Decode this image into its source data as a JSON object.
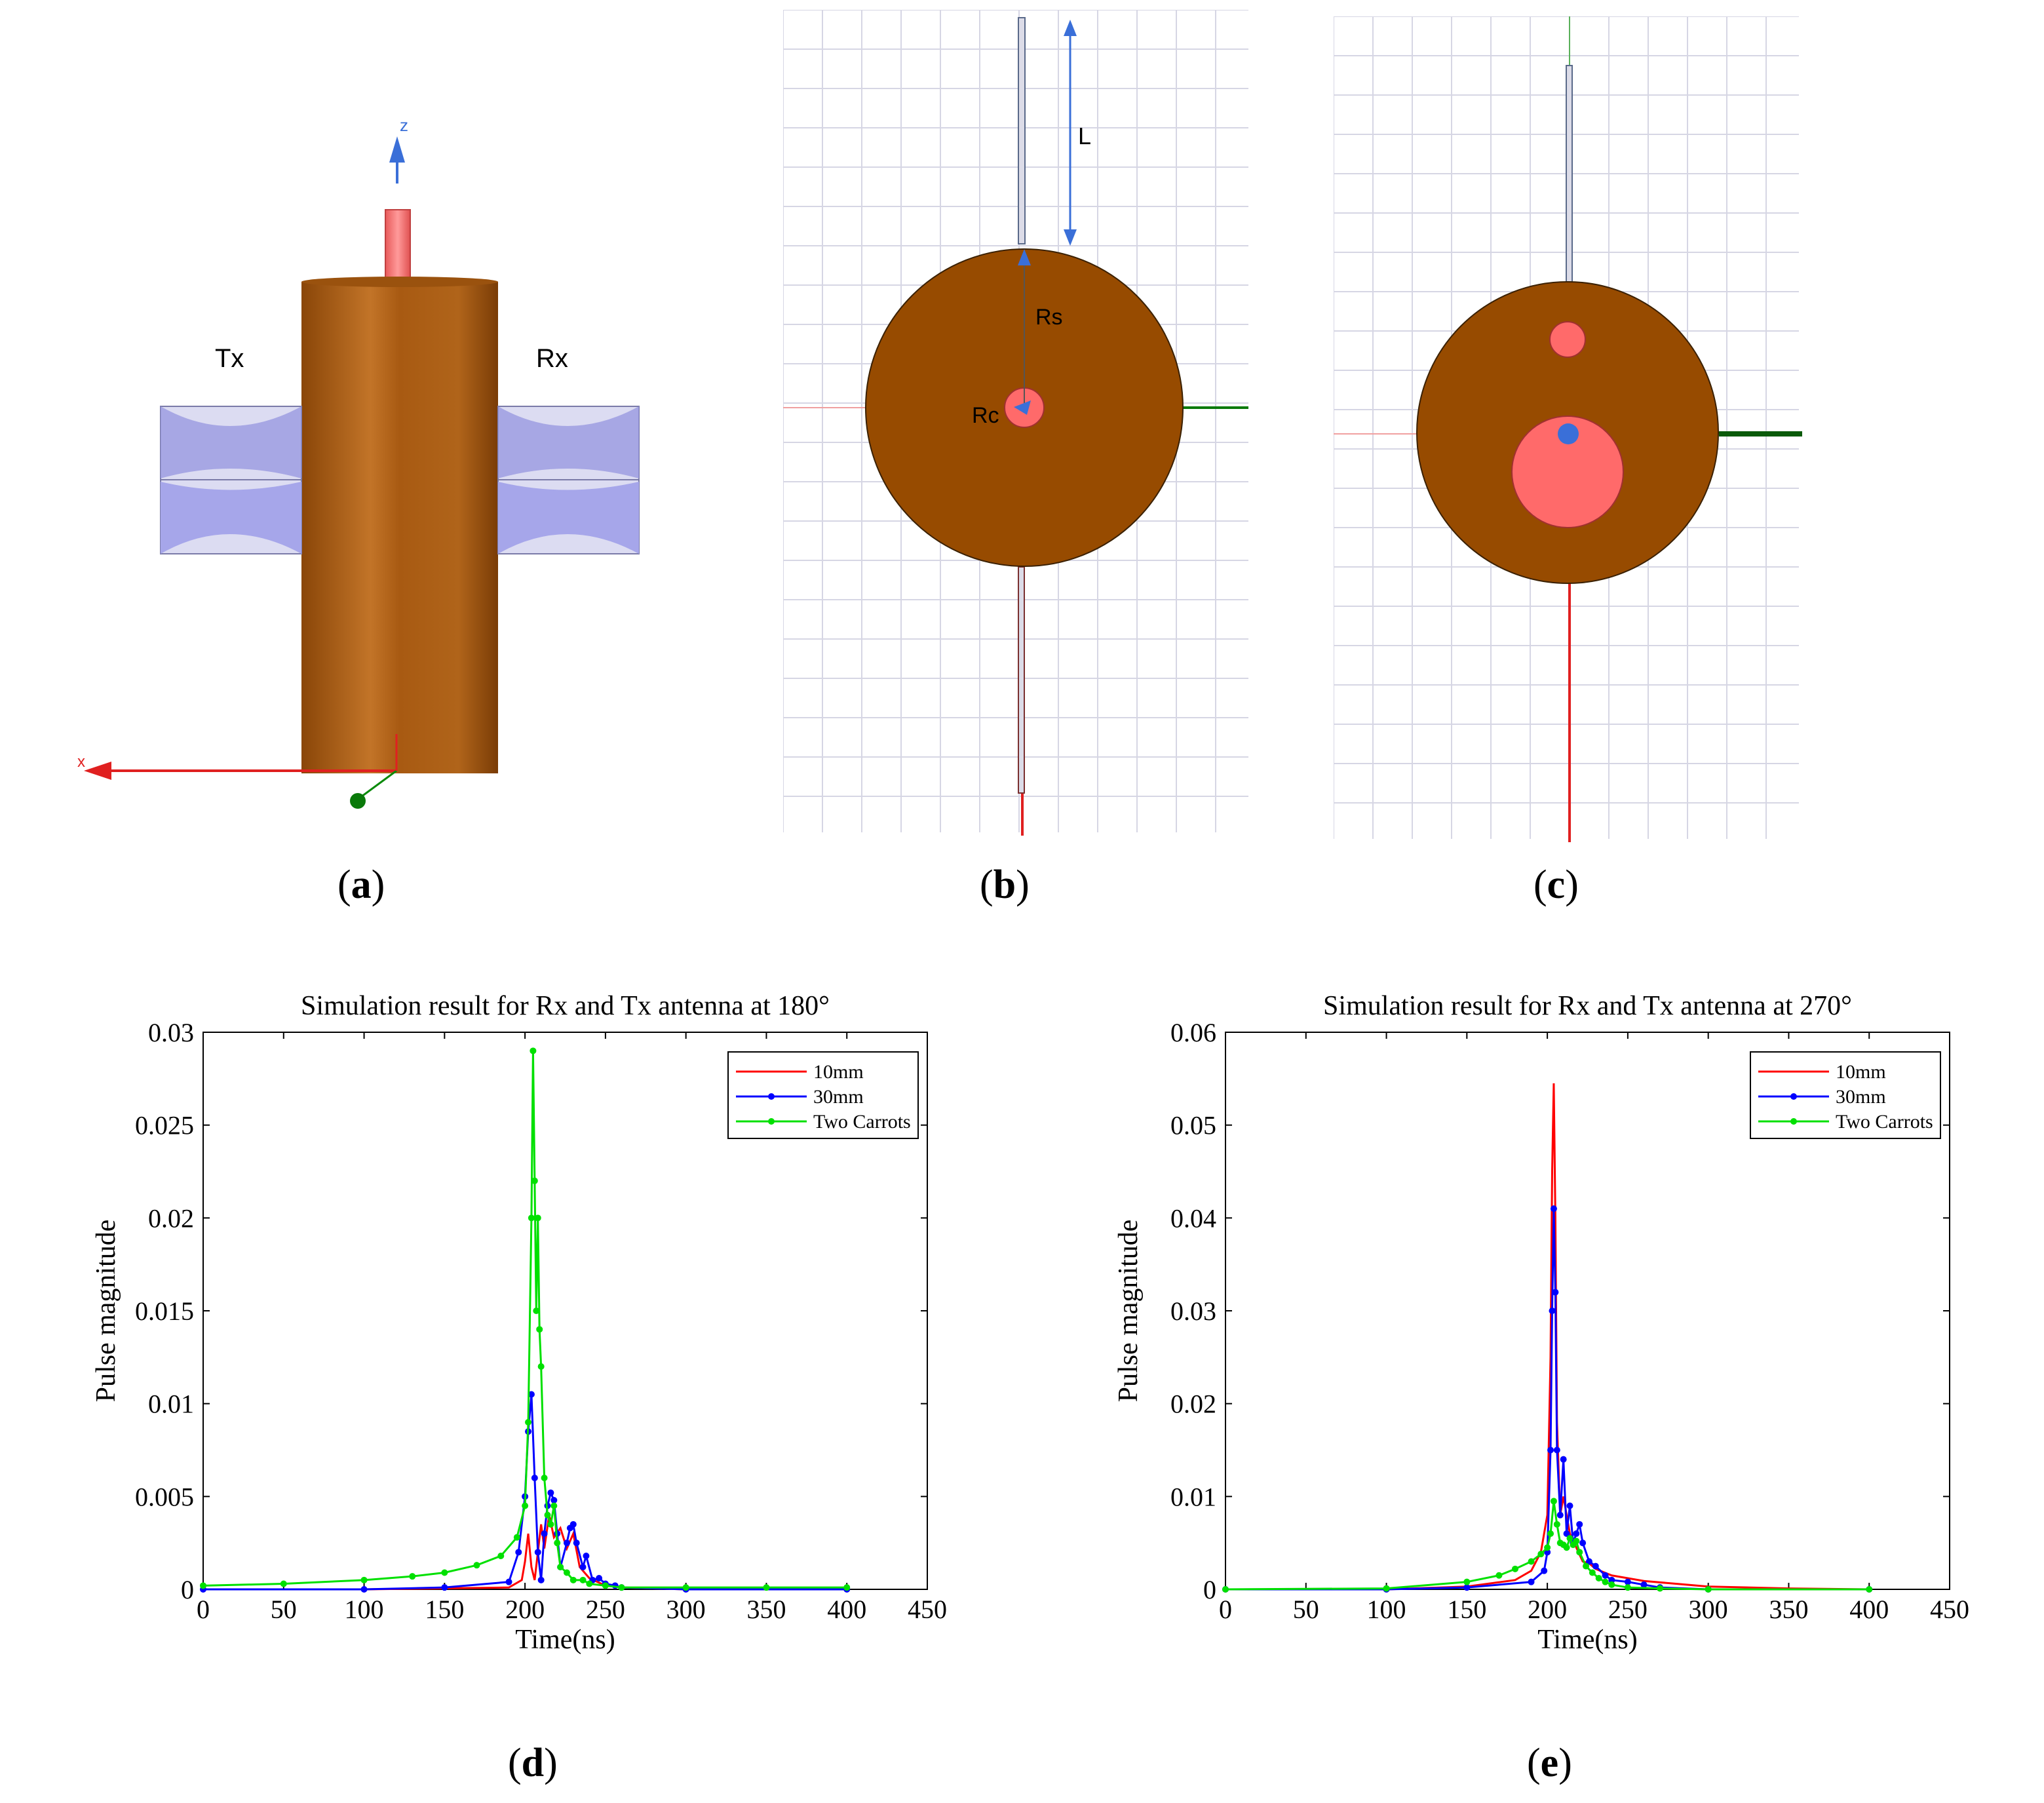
{
  "panel_a": {
    "tx_label": "Tx",
    "rx_label": "Rx",
    "z_axis": "z",
    "x_axis": "x",
    "caption": "a",
    "colors": {
      "cylinder": "#a65a12",
      "probe": "#f07070",
      "antenna": "#a6a6e6",
      "antenna_dark": "#7070b8"
    }
  },
  "panel_b": {
    "length_label": "L",
    "rs_label": "Rs",
    "rc_label": "Rc",
    "caption": "b",
    "colors": {
      "disk": "#974b00",
      "core": "#ff6a6a",
      "grid": "#d4d4e4"
    }
  },
  "panel_c": {
    "caption": "c"
  },
  "chart_data": [
    {
      "type": "line",
      "caption": "d",
      "title": "Simulation result for Rx and Tx antenna at 180°",
      "xlabel": "Time(ns)",
      "ylabel": "Pulse magnitude",
      "xlim": [
        0,
        450
      ],
      "ylim": [
        0,
        0.03
      ],
      "xticks": [
        0,
        50,
        100,
        150,
        200,
        250,
        300,
        350,
        400,
        450
      ],
      "xtick_labels": [
        "0",
        "50",
        "100",
        "150",
        "200",
        "250",
        "300",
        "350",
        "400",
        "450"
      ],
      "yticks": [
        0,
        0.005,
        0.01,
        0.015,
        0.02,
        0.025,
        0.03
      ],
      "ytick_labels": [
        "0",
        "0.005",
        "0.01",
        "0.015",
        "0.02",
        "0.025",
        "0.03"
      ],
      "legend_position": "top-right",
      "series": [
        {
          "name": "10mm",
          "color": "#ff0000",
          "marker": false,
          "x": [
            0,
            100,
            190,
            198,
            200,
            202,
            204,
            206,
            208,
            210,
            212,
            215,
            218,
            222,
            226,
            230,
            234,
            240,
            250,
            260,
            300,
            400
          ],
          "y": [
            0,
            0,
            0.0001,
            0.0005,
            0.0015,
            0.003,
            0.0012,
            0.0005,
            0.002,
            0.0035,
            0.0022,
            0.004,
            0.0028,
            0.0033,
            0.0022,
            0.003,
            0.0012,
            0.0006,
            0.0002,
            0.0001,
            0,
            0
          ]
        },
        {
          "name": "30mm",
          "color": "#0000ff",
          "marker": true,
          "x": [
            0,
            100,
            150,
            190,
            196,
            200,
            202,
            204,
            206,
            208,
            210,
            212,
            214,
            216,
            218,
            220,
            222,
            226,
            228,
            230,
            232,
            236,
            238,
            242,
            246,
            250,
            256,
            260,
            300,
            400
          ],
          "y": [
            0,
            0,
            0.0001,
            0.0004,
            0.002,
            0.005,
            0.0085,
            0.0105,
            0.006,
            0.002,
            0.0005,
            0.003,
            0.0045,
            0.0052,
            0.0048,
            0.003,
            0.0012,
            0.0025,
            0.0033,
            0.0035,
            0.0025,
            0.0012,
            0.0018,
            0.0005,
            0.0006,
            0.0003,
            0.0002,
            0.0001,
            0,
            0
          ]
        },
        {
          "name": "Two Carrots",
          "color": "#00e000",
          "marker": true,
          "x": [
            0,
            50,
            100,
            130,
            150,
            170,
            185,
            195,
            200,
            202,
            204,
            205,
            206,
            207,
            208,
            209,
            210,
            212,
            214,
            216,
            218,
            220,
            222,
            226,
            230,
            236,
            240,
            250,
            260,
            300,
            350,
            400
          ],
          "y": [
            0.0002,
            0.0003,
            0.0005,
            0.0007,
            0.0009,
            0.0013,
            0.0018,
            0.0028,
            0.0045,
            0.009,
            0.02,
            0.029,
            0.022,
            0.015,
            0.02,
            0.014,
            0.012,
            0.006,
            0.004,
            0.0035,
            0.0045,
            0.0025,
            0.0012,
            0.0009,
            0.0005,
            0.0005,
            0.0003,
            0.0002,
            0.0001,
            0.0001,
            0.0001,
            0.0001
          ]
        }
      ]
    },
    {
      "type": "line",
      "caption": "e",
      "title": "Simulation result for Rx and Tx antenna at 270°",
      "xlabel": "Time(ns)",
      "ylabel": "Pulse magnitude",
      "xlim": [
        0,
        450
      ],
      "ylim": [
        0,
        0.06
      ],
      "xticks": [
        0,
        50,
        100,
        150,
        200,
        250,
        300,
        350,
        400,
        450
      ],
      "xtick_labels": [
        "0",
        "50",
        "100",
        "150",
        "200",
        "250",
        "300",
        "350",
        "400",
        "450"
      ],
      "yticks": [
        0,
        0.01,
        0.02,
        0.03,
        0.04,
        0.05,
        0.06
      ],
      "ytick_labels": [
        "0",
        "0.01",
        "0.02",
        "0.03",
        "0.04",
        "0.05",
        "0.06"
      ],
      "legend_position": "top-right",
      "series": [
        {
          "name": "10mm",
          "color": "#ff0000",
          "marker": false,
          "x": [
            0,
            100,
            150,
            180,
            190,
            196,
            200,
            202,
            203,
            204,
            205,
            206,
            208,
            210,
            214,
            218,
            222,
            226,
            230,
            240,
            250,
            260,
            280,
            300,
            350,
            400
          ],
          "y": [
            0,
            0,
            0.0003,
            0.001,
            0.002,
            0.004,
            0.008,
            0.025,
            0.045,
            0.0545,
            0.04,
            0.018,
            0.008,
            0.01,
            0.006,
            0.0045,
            0.003,
            0.0028,
            0.0022,
            0.0015,
            0.0012,
            0.0009,
            0.0006,
            0.0003,
            0.0001,
            0
          ]
        },
        {
          "name": "30mm",
          "color": "#0000ff",
          "marker": true,
          "x": [
            0,
            100,
            150,
            190,
            198,
            200,
            202,
            203,
            204,
            205,
            206,
            208,
            210,
            212,
            214,
            216,
            218,
            220,
            222,
            226,
            230,
            236,
            240,
            250,
            260,
            270,
            300,
            400
          ],
          "y": [
            0,
            0,
            0.0002,
            0.0008,
            0.002,
            0.004,
            0.015,
            0.03,
            0.041,
            0.032,
            0.015,
            0.008,
            0.014,
            0.006,
            0.009,
            0.005,
            0.006,
            0.007,
            0.005,
            0.003,
            0.0025,
            0.0015,
            0.001,
            0.0008,
            0.0005,
            0.0002,
            0,
            0
          ]
        },
        {
          "name": "Two Carrots",
          "color": "#00e000",
          "marker": true,
          "x": [
            0,
            100,
            150,
            170,
            180,
            190,
            196,
            200,
            202,
            204,
            206,
            208,
            210,
            212,
            214,
            216,
            218,
            220,
            224,
            228,
            232,
            236,
            240,
            250,
            270,
            300,
            400
          ],
          "y": [
            0,
            0.0001,
            0.0008,
            0.0015,
            0.0022,
            0.003,
            0.0038,
            0.0045,
            0.006,
            0.0095,
            0.007,
            0.005,
            0.0048,
            0.0045,
            0.0055,
            0.0048,
            0.0052,
            0.004,
            0.0025,
            0.0018,
            0.0012,
            0.0008,
            0.0005,
            0.0002,
            0.0001,
            0,
            0
          ]
        }
      ]
    }
  ]
}
